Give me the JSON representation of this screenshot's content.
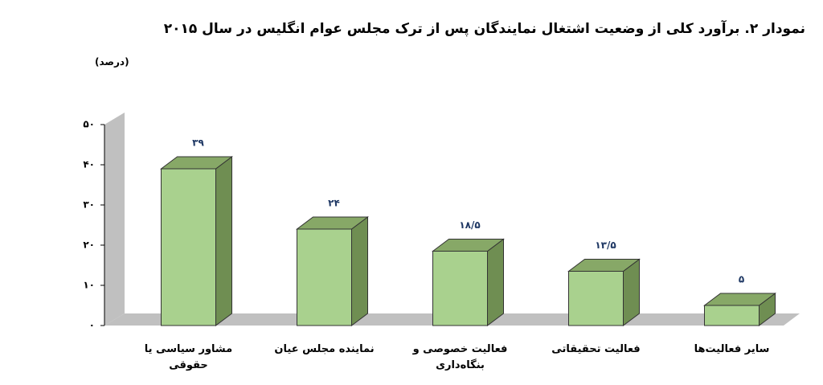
{
  "chart_data": {
    "type": "bar3d",
    "title": "نمودار ۲. برآورد کلی از وضعیت اشتغال نمایندگان پس از ترک مجلس عوام انگلیس در سال ۲۰۱۵",
    "y_label": "(درصد)",
    "categories": [
      "مشاور سیاسی یا حقوقی",
      "نماینده مجلس عیان",
      "فعالیت خصوصی و بنگاه‌داری",
      "فعالیت تحقیقاتی",
      "سایر فعالیت‌ها"
    ],
    "values": [
      39,
      24,
      18.5,
      13.5,
      5
    ],
    "value_labels": [
      "۳۹",
      "۲۴",
      "۱۸/۵",
      "۱۳/۵",
      "۵"
    ],
    "color": "#a9d18e",
    "ylim": [
      0,
      50
    ],
    "yticks": [
      {
        "value": 0,
        "label": "۰"
      },
      {
        "value": 10,
        "label": "۱۰"
      },
      {
        "value": 20,
        "label": "۲۰"
      },
      {
        "value": 30,
        "label": "۳۰"
      },
      {
        "value": 40,
        "label": "۴۰"
      },
      {
        "value": 50,
        "label": "۵۰"
      }
    ]
  }
}
